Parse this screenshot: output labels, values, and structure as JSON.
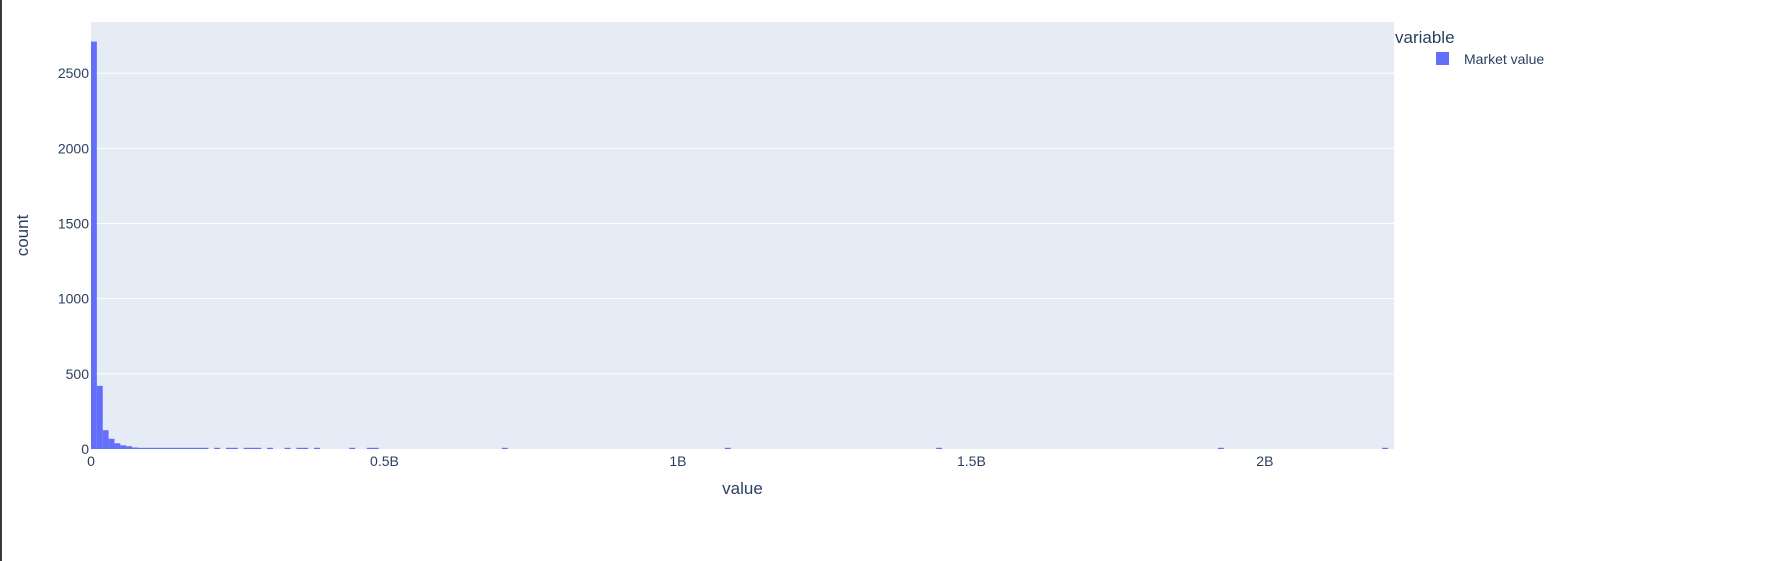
{
  "chart_data": {
    "type": "bar",
    "subtype": "histogram",
    "xlabel": "value",
    "ylabel": "count",
    "xlim": [
      0,
      2220000000
    ],
    "ylim": [
      0,
      2840
    ],
    "x_ticks": [
      {
        "value": 0,
        "label": "0"
      },
      {
        "value": 500000000,
        "label": "0.5B"
      },
      {
        "value": 1000000000,
        "label": "1B"
      },
      {
        "value": 1500000000,
        "label": "1.5B"
      },
      {
        "value": 2000000000,
        "label": "2B"
      }
    ],
    "y_ticks": [
      {
        "value": 0,
        "label": "0"
      },
      {
        "value": 500,
        "label": "500"
      },
      {
        "value": 1000,
        "label": "1000"
      },
      {
        "value": 1500,
        "label": "1500"
      },
      {
        "value": 2000,
        "label": "2000"
      },
      {
        "value": 2500,
        "label": "2500"
      }
    ],
    "grid": true,
    "legend": {
      "title": "variable",
      "placement": "right",
      "items": [
        {
          "label": "Market value",
          "color": "#636efa"
        }
      ]
    },
    "colors": {
      "bar": "#636efa",
      "plot_background": "#e5ecf6",
      "grid": "#ffffff",
      "text": "#2a3f5f"
    },
    "series": [
      {
        "name": "Market value",
        "bin_width": 10000000,
        "bins": [
          {
            "x": 0,
            "count": 2710
          },
          {
            "x": 10000000,
            "count": 420
          },
          {
            "x": 20000000,
            "count": 125
          },
          {
            "x": 30000000,
            "count": 68
          },
          {
            "x": 40000000,
            "count": 38
          },
          {
            "x": 50000000,
            "count": 25
          },
          {
            "x": 60000000,
            "count": 18
          },
          {
            "x": 70000000,
            "count": 10
          },
          {
            "x": 80000000,
            "count": 8
          },
          {
            "x": 90000000,
            "count": 6
          },
          {
            "x": 100000000,
            "count": 5
          },
          {
            "x": 110000000,
            "count": 4
          },
          {
            "x": 120000000,
            "count": 3
          },
          {
            "x": 130000000,
            "count": 3
          },
          {
            "x": 140000000,
            "count": 3
          },
          {
            "x": 150000000,
            "count": 2
          },
          {
            "x": 160000000,
            "count": 2
          },
          {
            "x": 170000000,
            "count": 2
          },
          {
            "x": 180000000,
            "count": 2
          },
          {
            "x": 190000000,
            "count": 2
          },
          {
            "x": 210000000,
            "count": 1
          },
          {
            "x": 230000000,
            "count": 2
          },
          {
            "x": 240000000,
            "count": 1
          },
          {
            "x": 260000000,
            "count": 2
          },
          {
            "x": 270000000,
            "count": 1
          },
          {
            "x": 280000000,
            "count": 1
          },
          {
            "x": 300000000,
            "count": 1
          },
          {
            "x": 330000000,
            "count": 1
          },
          {
            "x": 350000000,
            "count": 1
          },
          {
            "x": 360000000,
            "count": 1
          },
          {
            "x": 380000000,
            "count": 1
          },
          {
            "x": 440000000,
            "count": 1
          },
          {
            "x": 470000000,
            "count": 1
          },
          {
            "x": 480000000,
            "count": 1
          },
          {
            "x": 700000000,
            "count": 1
          },
          {
            "x": 1080000000,
            "count": 1
          },
          {
            "x": 1440000000,
            "count": 1
          },
          {
            "x": 1920000000,
            "count": 1
          },
          {
            "x": 2200000000,
            "count": 1
          }
        ]
      }
    ]
  }
}
